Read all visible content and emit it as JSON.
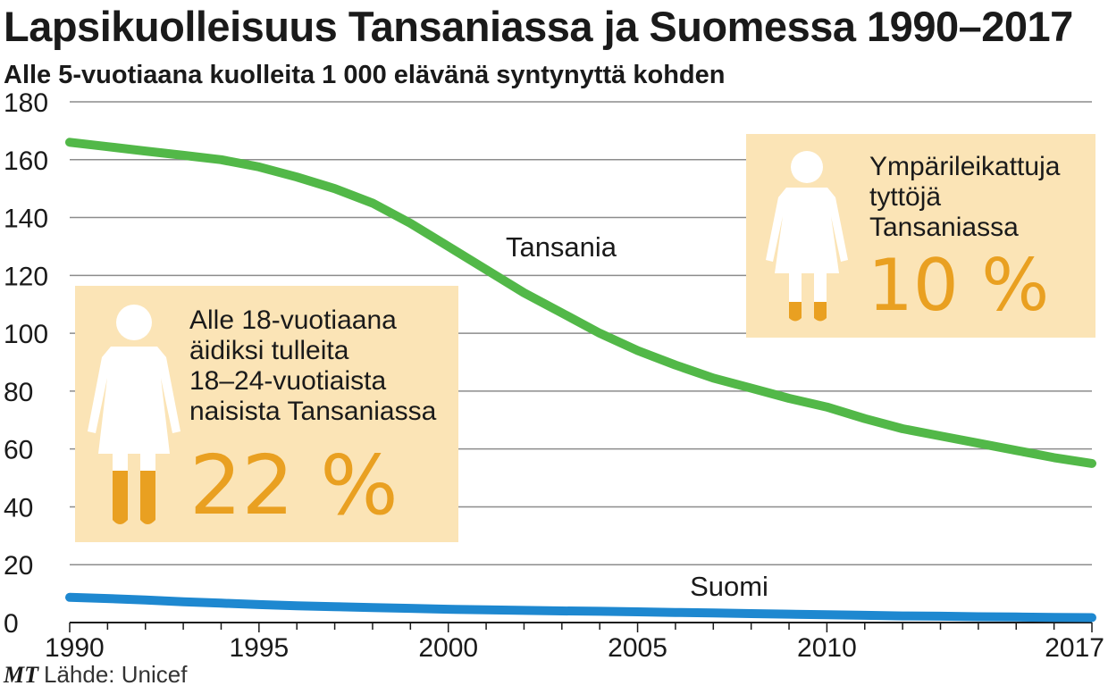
{
  "title": "Lapsikuolleisuus Tansaniassa ja Suomessa 1990–2017",
  "subtitle": "Alle 5-vuotiaana kuolleita 1 000 elävänä syntynyttä kohden",
  "source": {
    "brand": "MT",
    "text": "Lähde: Unicef"
  },
  "colors": {
    "tanzania": "#52b848",
    "finland": "#1e88d0",
    "card": "#fbe4b6",
    "accent": "#e9a021"
  },
  "cards": [
    {
      "text_lines": [
        "Alle 18-vuotiaana",
        "äidiksi tulleita",
        "18–24-vuotiaista",
        "naisista Tansaniassa"
      ],
      "value": "22 %",
      "icon": "girl-figure-icon"
    },
    {
      "text_lines": [
        "Ympärileikattuja",
        "tyttöjä",
        "Tansaniassa"
      ],
      "value": "10 %",
      "icon": "girl-figure-icon"
    }
  ],
  "chart_data": {
    "type": "line",
    "title": "Lapsikuolleisuus Tansaniassa ja Suomessa 1990–2017",
    "subtitle": "Alle 5-vuotiaana kuolleita 1 000 elävänä syntynyttä kohden",
    "xlabel": "",
    "ylabel": "",
    "xlim": [
      1990,
      2017
    ],
    "ylim": [
      0,
      180
    ],
    "x_ticks": [
      1990,
      1995,
      2000,
      2005,
      2010,
      2017
    ],
    "y_ticks": [
      0,
      20,
      40,
      60,
      80,
      100,
      120,
      140,
      160,
      180
    ],
    "grid": "horizontal",
    "x": [
      1990,
      1991,
      1992,
      1993,
      1994,
      1995,
      1996,
      1997,
      1998,
      1999,
      2000,
      2001,
      2002,
      2003,
      2004,
      2005,
      2006,
      2007,
      2008,
      2009,
      2010,
      2011,
      2012,
      2013,
      2014,
      2015,
      2016,
      2017
    ],
    "series": [
      {
        "name": "Tansania",
        "values": [
          166,
          164.5,
          163,
          161.5,
          160,
          157.5,
          154,
          150,
          145,
          138,
          130,
          122,
          114,
          107,
          100,
          94,
          89,
          84.5,
          81,
          77.5,
          74.5,
          70.5,
          67,
          64.5,
          62,
          59.5,
          57,
          55
        ]
      },
      {
        "name": "Suomi",
        "values": [
          8.7,
          8.3,
          7.8,
          7.2,
          6.7,
          6.2,
          5.8,
          5.5,
          5.2,
          4.9,
          4.6,
          4.4,
          4.2,
          4.0,
          3.9,
          3.7,
          3.5,
          3.3,
          3.1,
          2.9,
          2.7,
          2.5,
          2.3,
          2.2,
          2.0,
          1.9,
          1.8,
          1.7
        ]
      }
    ]
  }
}
